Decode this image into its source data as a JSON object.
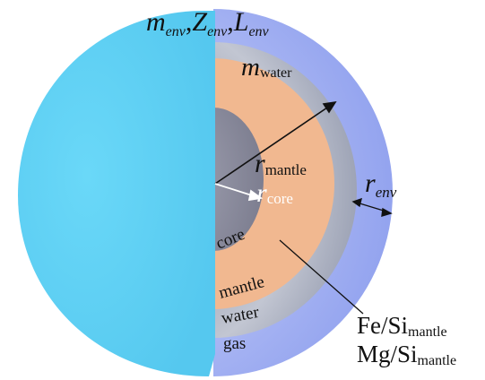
{
  "labels": {
    "env_m": "m",
    "env_m_sub": "env",
    "env_z": "Z",
    "env_z_sub": "env",
    "env_l": "L",
    "env_l_sub": "env",
    "comma": ",",
    "water_m": "m",
    "water_m_sub": "water",
    "r_mantle": "r",
    "r_mantle_sub": "mantle",
    "r_core": "r",
    "r_core_sub": "core",
    "r_env": "r",
    "r_env_sub": "env",
    "core": "core",
    "mantle": "mantle",
    "water": "water",
    "gas": "gas",
    "fe_si": "Fe/Si",
    "fe_si_sub": "mantle",
    "mg_si": "Mg/Si",
    "mg_si_sub": "mantle"
  },
  "colors": {
    "envelope": "#5fd3f5",
    "gas_layer": "#9aa8f2",
    "water_layer": "#aeb3c2",
    "mantle_layer": "#f2b892",
    "core_layer": "#8d8e9f"
  }
}
